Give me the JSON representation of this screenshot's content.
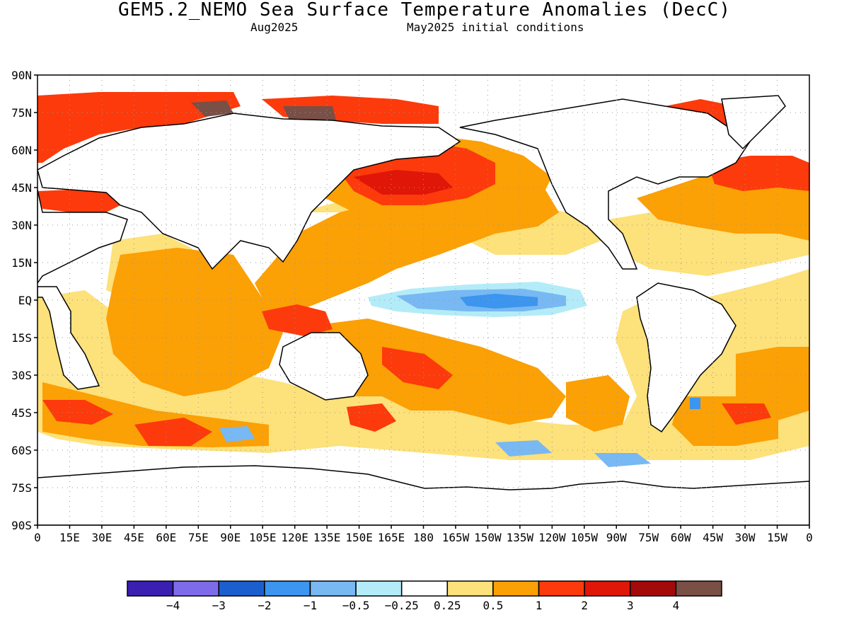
{
  "title": "GEM5.2_NEMO Sea Surface Temperature Anomalies (DecC)",
  "subtitle_left": "Aug2025",
  "subtitle_right": "May2025 initial conditions",
  "lat_labels": [
    "90N",
    "75N",
    "60N",
    "45N",
    "30N",
    "15N",
    "EQ",
    "15S",
    "30S",
    "45S",
    "60S",
    "75S",
    "90S"
  ],
  "lon_labels": [
    "0",
    "15E",
    "30E",
    "45E",
    "60E",
    "75E",
    "90E",
    "105E",
    "120E",
    "135E",
    "150E",
    "165E",
    "180",
    "165W",
    "150W",
    "135W",
    "120W",
    "105W",
    "90W",
    "75W",
    "60W",
    "45W",
    "30W",
    "15W",
    "0"
  ],
  "colorbar": {
    "colors": [
      "#3a1fb2",
      "#7e6bea",
      "#1b5fcf",
      "#3c95ee",
      "#78b8f3",
      "#b3ecf8",
      "#ffffff",
      "#fde17a",
      "#fba005",
      "#fc3a0b",
      "#df1608",
      "#a30a0a",
      "#7a4f46"
    ],
    "labels": [
      "−4",
      "−3",
      "−2",
      "−1",
      "−0.5",
      "−0.25",
      "0.25",
      "0.5",
      "1",
      "2",
      "3",
      "4"
    ]
  },
  "legend_colors": {
    "land": "#ffffff",
    "coast": "#000000",
    "gridline": "#9a9a9a"
  }
}
